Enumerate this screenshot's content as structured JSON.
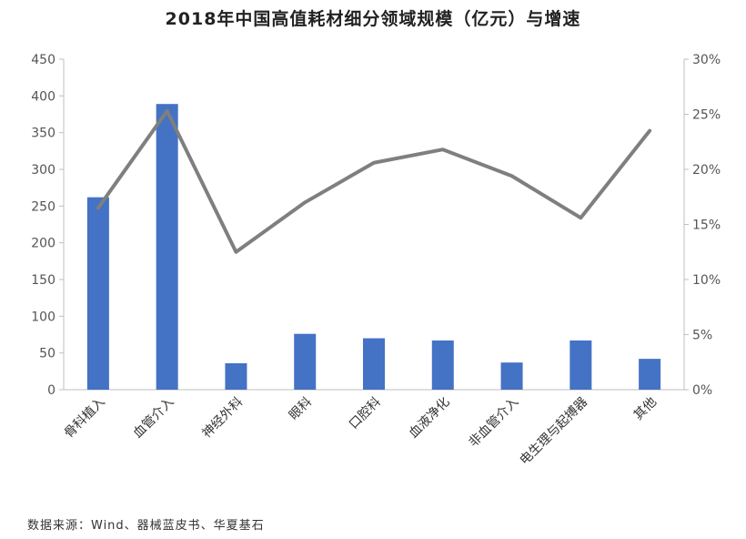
{
  "chart_data": {
    "type": "bar",
    "title": "2018年中国高值耗材细分领域规模（亿元）与增速",
    "categories": [
      "骨科植入",
      "血管介入",
      "神经外科",
      "眼科",
      "口腔科",
      "血液净化",
      "非血管介入",
      "电生理与起搏器",
      "其他"
    ],
    "series": [
      {
        "type": "bar",
        "axis": "left",
        "color": "#4472C4",
        "values": [
          262,
          389,
          36,
          76,
          70,
          67,
          37,
          67,
          42
        ]
      },
      {
        "type": "line",
        "axis": "right",
        "color": "#7F7F7F",
        "values": [
          16.5,
          25.3,
          12.5,
          17.0,
          20.6,
          21.8,
          19.4,
          15.6,
          23.5
        ]
      }
    ],
    "y_left": {
      "min": 0,
      "max": 450,
      "step": 50,
      "ticks": [
        "0",
        "50",
        "100",
        "150",
        "200",
        "250",
        "300",
        "350",
        "400",
        "450"
      ]
    },
    "y_right": {
      "min": 0,
      "max": 30,
      "step": 5,
      "ticks": [
        "0%",
        "5%",
        "10%",
        "15%",
        "20%",
        "25%",
        "30%"
      ]
    },
    "grid": false,
    "legend": "none",
    "source": "数据来源：Wind、器械蓝皮书、华夏基石"
  }
}
